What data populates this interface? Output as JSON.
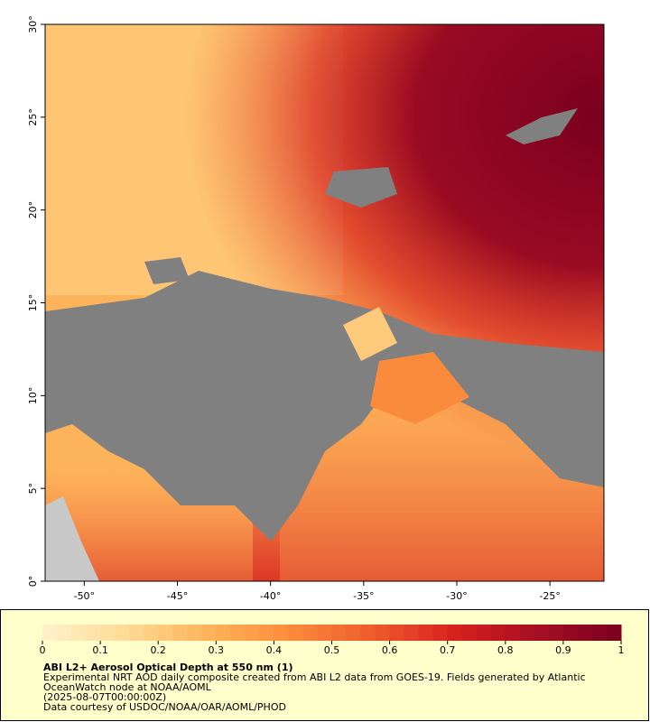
{
  "map": {
    "xlim": [
      -52.1,
      -22.1
    ],
    "ylim": [
      0,
      30
    ],
    "xticks": [
      {
        "value": -50,
        "label": "-50°"
      },
      {
        "value": -45,
        "label": "-45°"
      },
      {
        "value": -40,
        "label": "-40°"
      },
      {
        "value": -35,
        "label": "-35°"
      },
      {
        "value": -30,
        "label": "-30°"
      },
      {
        "value": -25,
        "label": "-25°"
      }
    ],
    "yticks": [
      {
        "value": 0,
        "label": "0°"
      },
      {
        "value": 5,
        "label": "5°"
      },
      {
        "value": 10,
        "label": "10°"
      },
      {
        "value": 15,
        "label": "15°"
      },
      {
        "value": 20,
        "label": "20°"
      },
      {
        "value": 25,
        "label": "25°"
      },
      {
        "value": 30,
        "label": "30°"
      }
    ]
  },
  "colorbar": {
    "range": [
      0,
      1
    ],
    "ticks": [
      0,
      0.1,
      0.2,
      0.3,
      0.4,
      0.5,
      0.6,
      0.7,
      0.8,
      0.9,
      1
    ],
    "colors": [
      "#fff2cc",
      "#fedb95",
      "#fdb35a",
      "#fb8b3c",
      "#ef5b2c",
      "#d7201c",
      "#a50f22",
      "#7a0020"
    ],
    "steps": 40
  },
  "legend": {
    "title": "ABI L2+ Aerosol Optical Depth at 550 nm (1)",
    "lines": [
      "Experimental NRT AOD daily composite created from ABI L2 data from GOES-19. Fields generated by Atlantic",
      "OceanWatch node at NOAA/AOML",
      "(2025-08-07T00:00:00Z)",
      "Data courtesy of USDOC/NOAA/OAR/AOML/PHOD"
    ]
  }
}
